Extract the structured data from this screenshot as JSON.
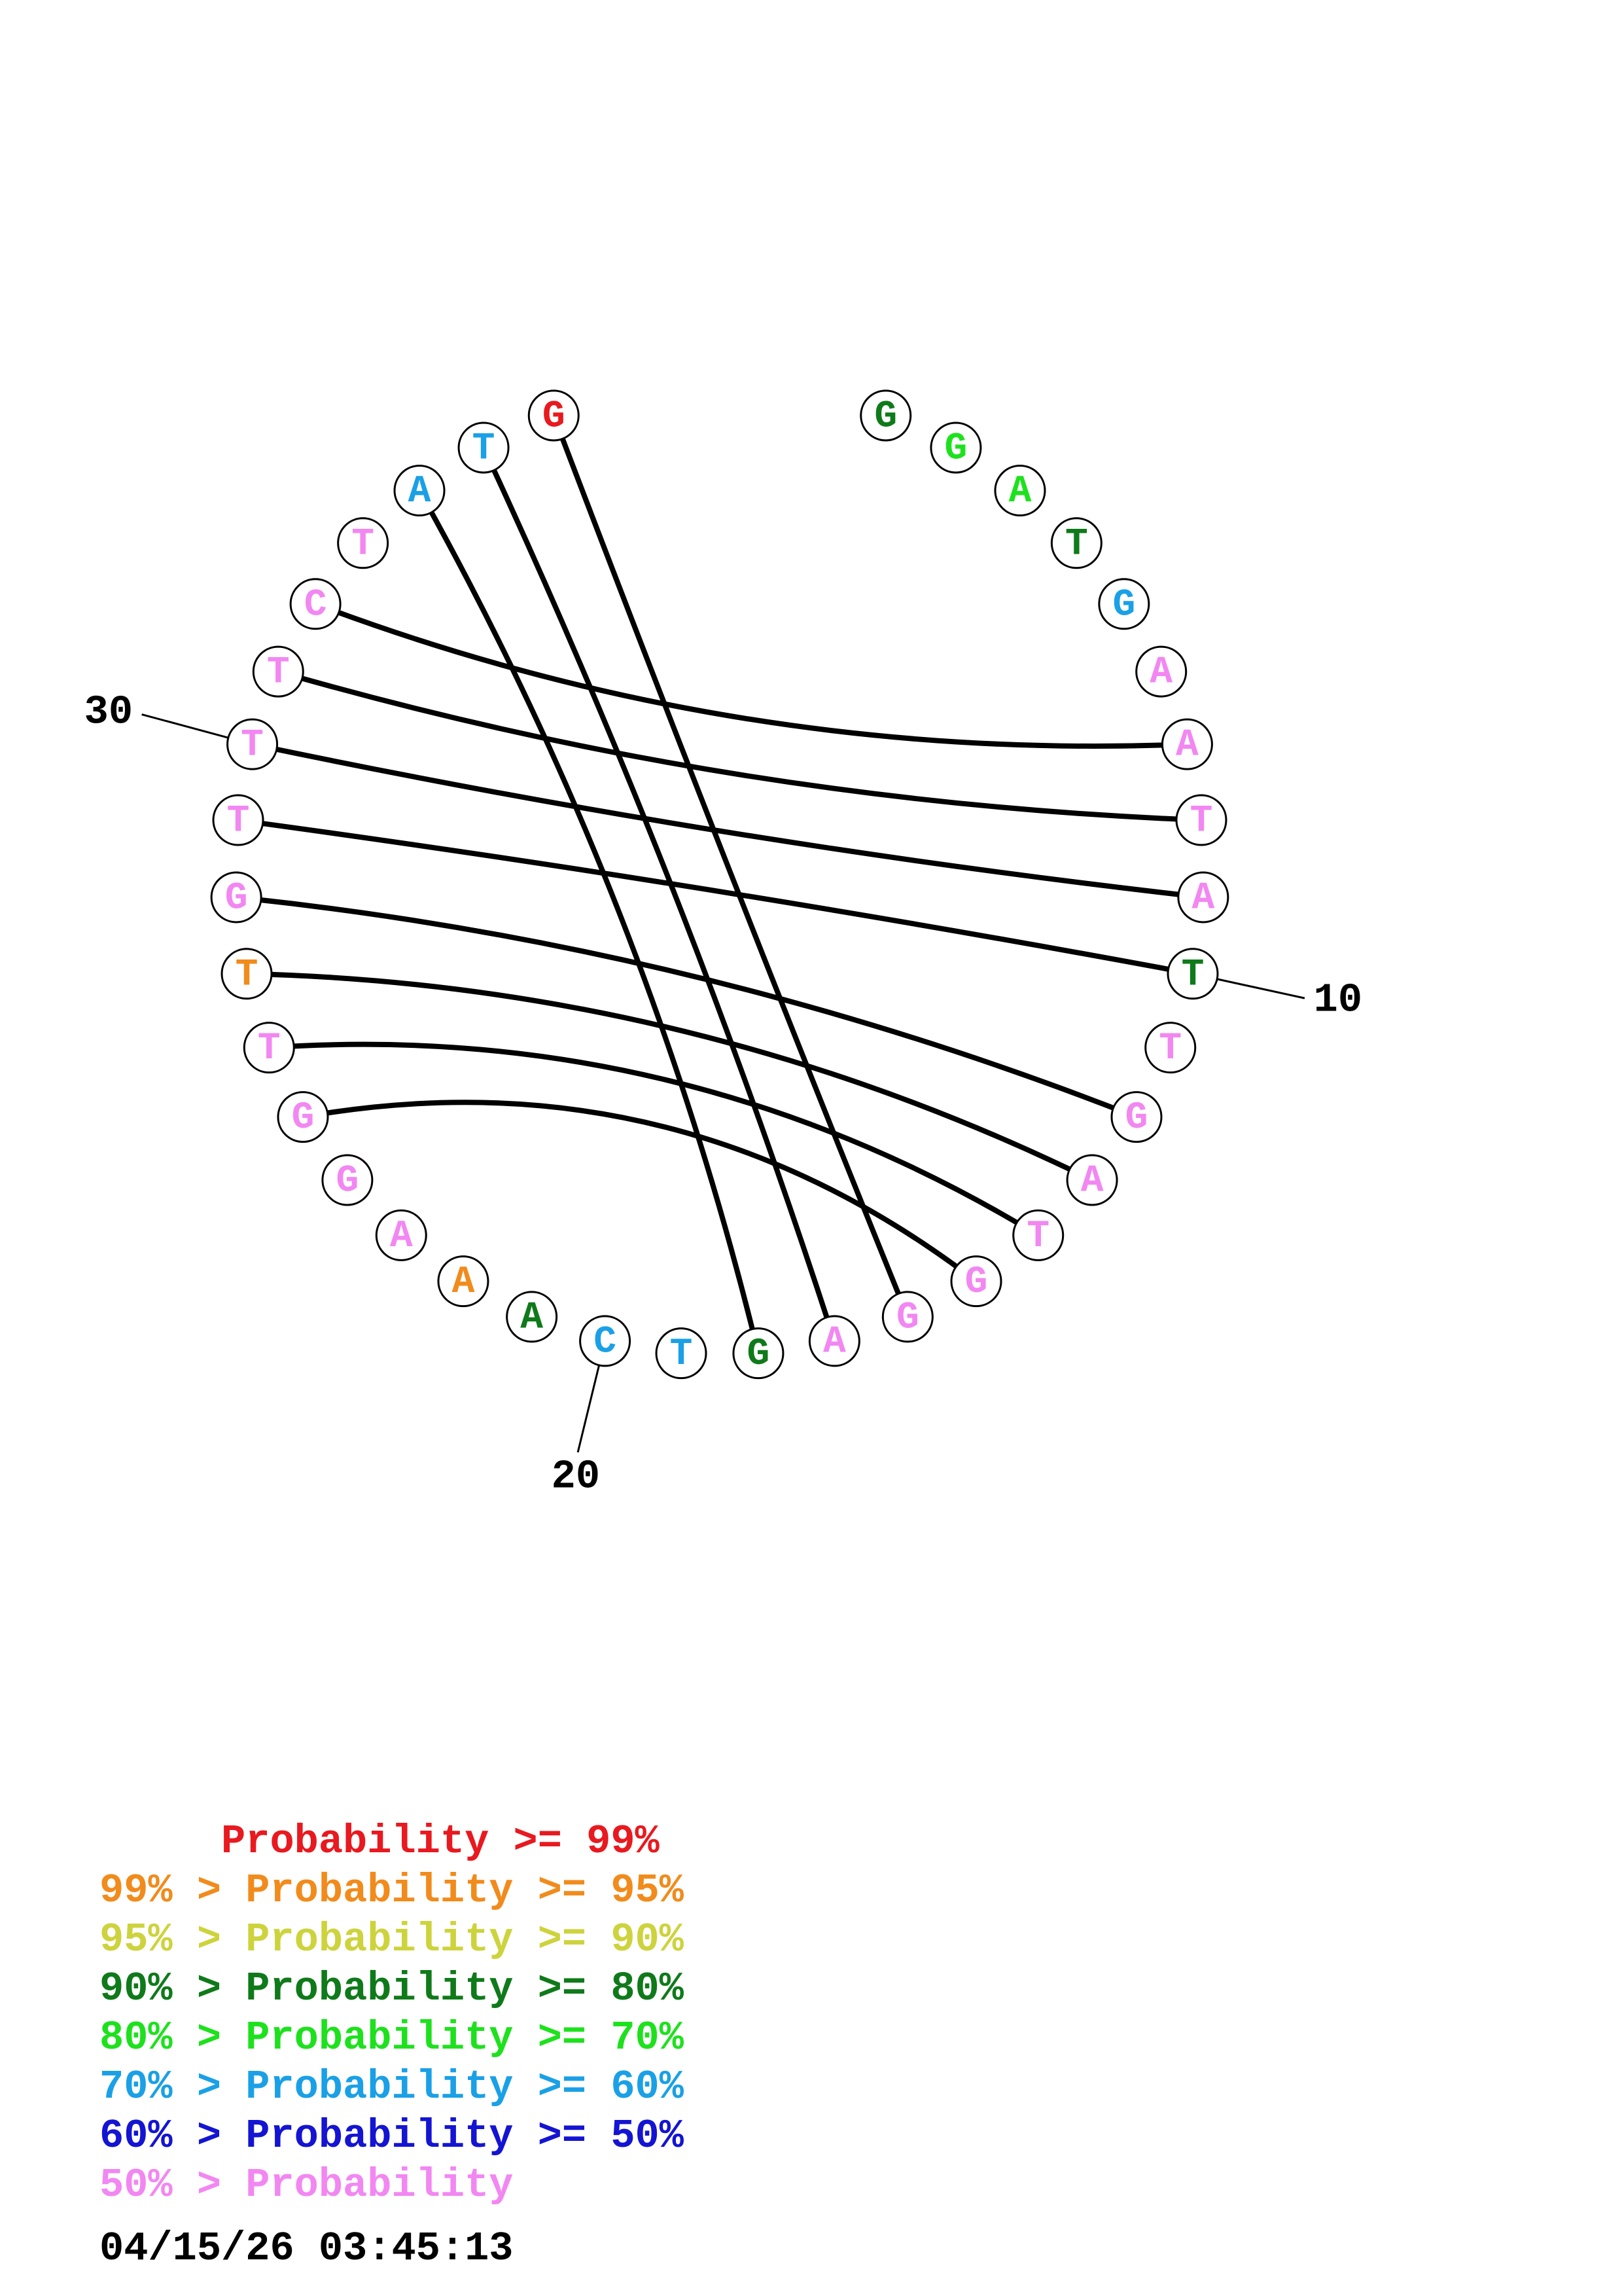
{
  "sequence": "GGATGAATATTGATGGAGTCAAAGGTTGTTTCTATG",
  "base_colors": [
    "green_dark",
    "green_light",
    "green_light",
    "green_dark",
    "blue_light",
    "pink",
    "pink",
    "pink",
    "pink",
    "green_dark",
    "pink",
    "pink",
    "pink",
    "pink",
    "pink",
    "pink",
    "pink",
    "green_dark",
    "blue_light",
    "blue_light",
    "green_dark",
    "orange",
    "pink",
    "pink",
    "pink",
    "pink",
    "orange",
    "pink",
    "pink",
    "pink",
    "pink",
    "pink",
    "pink",
    "blue_light",
    "blue_light",
    "red"
  ],
  "pairs": [
    [
      6,
      31
    ],
    [
      7,
      30
    ],
    [
      8,
      29
    ],
    [
      9,
      28
    ],
    [
      11,
      27
    ],
    [
      12,
      26
    ],
    [
      13,
      25
    ],
    [
      14,
      24
    ],
    [
      15,
      35
    ],
    [
      16,
      34
    ],
    [
      17,
      33
    ]
  ],
  "palette": {
    "red": "#e8191f",
    "orange": "#f18b1c",
    "yellow": "#cdd33c",
    "green_dark": "#0f7a1a",
    "green_light": "#1ee11e",
    "blue_light": "#1aa0e6",
    "blue_dark": "#1414d2",
    "pink": "#f287f2"
  },
  "position_markers": [
    {
      "index": 10,
      "label": "10"
    },
    {
      "index": 20,
      "label": "20"
    },
    {
      "index": 30,
      "label": "30"
    }
  ],
  "legend": [
    {
      "text": "     Probability >= 99%",
      "color": "#e8191f"
    },
    {
      "text": "99% > Probability >= 95%",
      "color": "#f18b1c"
    },
    {
      "text": "95% > Probability >= 90%",
      "color": "#cdd33c"
    },
    {
      "text": "90% > Probability >= 80%",
      "color": "#0f7a1a"
    },
    {
      "text": "80% > Probability >= 70%",
      "color": "#1ee11e"
    },
    {
      "text": "70% > Probability >= 60%",
      "color": "#1aa0e6"
    },
    {
      "text": "60% > Probability >= 50%",
      "color": "#1414d2"
    },
    {
      "text": "50% > Probability",
      "color": "#f287f2"
    }
  ],
  "timestamp": "04/15/26 03:45:13"
}
